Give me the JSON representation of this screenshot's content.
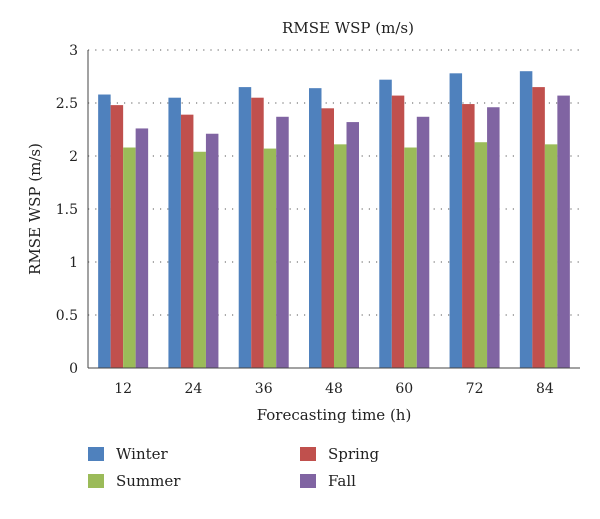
{
  "chart_data": {
    "type": "bar",
    "title": "RMSE WSP (m/s)",
    "xlabel": "Forecasting time (h)",
    "ylabel": "RMSE WSP (m/s)",
    "categories": [
      "12",
      "24",
      "36",
      "48",
      "60",
      "72",
      "84"
    ],
    "ylim": [
      0,
      3
    ],
    "yticks": [
      "0",
      "0.5",
      "1",
      "1.5",
      "2",
      "2.5",
      "3"
    ],
    "grid": "horizontal dotted",
    "legend_position": "bottom",
    "series": [
      {
        "name": "Winter",
        "color": "#4F81BD",
        "values": [
          2.58,
          2.55,
          2.65,
          2.64,
          2.72,
          2.78,
          2.8
        ]
      },
      {
        "name": "Spring",
        "color": "#C0504D",
        "values": [
          2.48,
          2.39,
          2.55,
          2.45,
          2.57,
          2.49,
          2.65
        ]
      },
      {
        "name": "Summer",
        "color": "#9BBB59",
        "values": [
          2.08,
          2.04,
          2.07,
          2.11,
          2.08,
          2.13,
          2.11
        ]
      },
      {
        "name": "Fall",
        "color": "#8064A2",
        "values": [
          2.26,
          2.21,
          2.37,
          2.32,
          2.37,
          2.46,
          2.57
        ]
      }
    ]
  }
}
